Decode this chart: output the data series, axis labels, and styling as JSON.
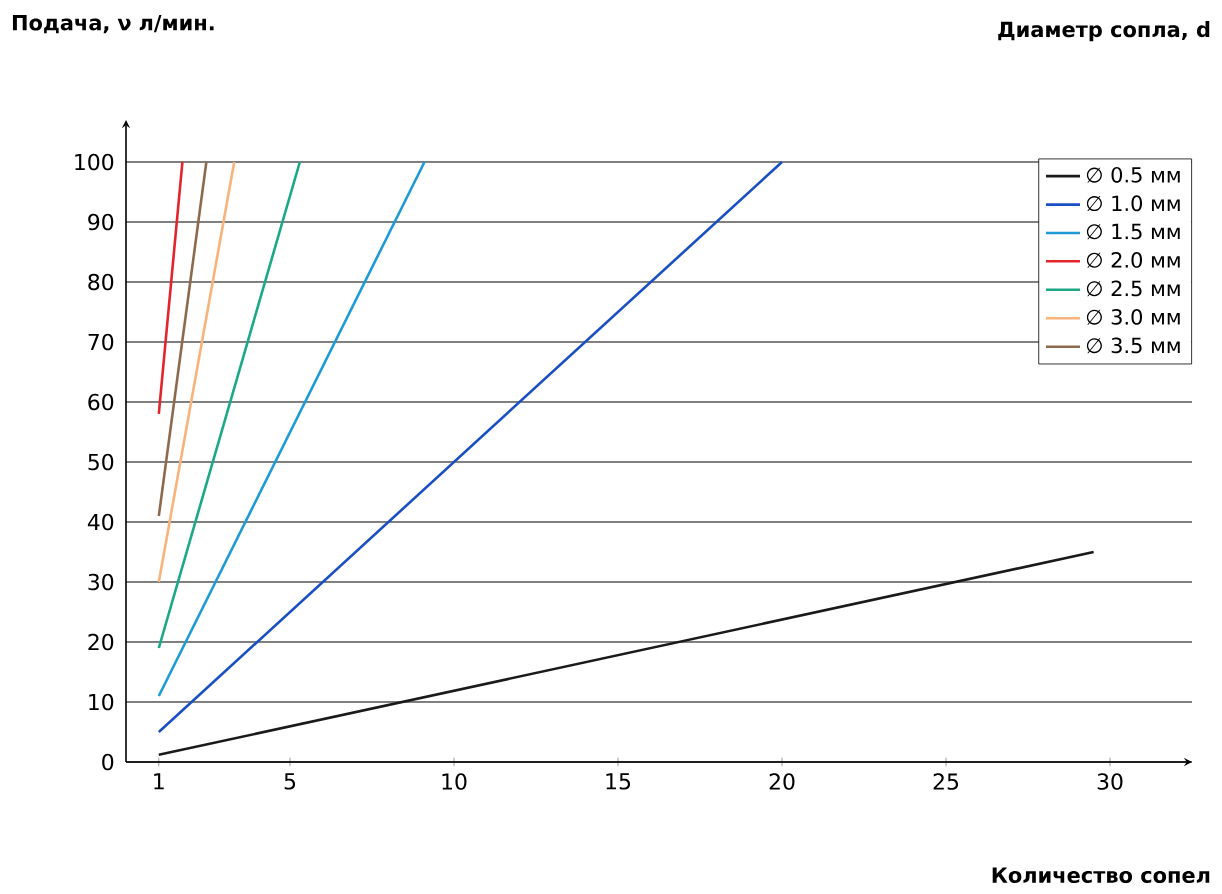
{
  "chart_data": {
    "type": "line",
    "ylabel": "Подача, ν л/мин.",
    "xlabel": "Количество сопел",
    "legend_title": "Диаметр сопла, d",
    "xlim": [
      0,
      32.5
    ],
    "ylim": [
      0,
      107
    ],
    "xticks": [
      1,
      5,
      10,
      15,
      20,
      25,
      30
    ],
    "yticks": [
      0,
      10,
      20,
      30,
      40,
      50,
      60,
      70,
      80,
      90,
      100
    ],
    "grid": "y",
    "legend": "top right",
    "marker": "none",
    "line_style": "solid",
    "series": [
      {
        "name": "∅ 0.5 мм",
        "color": "#1a1a1a",
        "x": [
          1,
          29.5
        ],
        "values": [
          1.2,
          35
        ]
      },
      {
        "name": "∅ 1.0 мм",
        "color": "#1a4fc4",
        "x": [
          1,
          20
        ],
        "values": [
          5,
          100
        ]
      },
      {
        "name": "∅ 1.5 мм",
        "color": "#1e9ad6",
        "x": [
          1,
          9.1
        ],
        "values": [
          11,
          100
        ]
      },
      {
        "name": "∅ 2.0 мм",
        "color": "#e3242b",
        "x": [
          1,
          1.72
        ],
        "values": [
          58,
          100
        ]
      },
      {
        "name": "∅ 2.5 мм",
        "color": "#1aa886",
        "x": [
          1,
          5.3
        ],
        "values": [
          19,
          100
        ]
      },
      {
        "name": "∅ 3.0 мм",
        "color": "#f9b27a",
        "x": [
          1,
          3.3
        ],
        "values": [
          30,
          100
        ]
      },
      {
        "name": "∅ 3.5 мм",
        "color": "#8b6a4e",
        "x": [
          1,
          2.45
        ],
        "values": [
          41,
          100
        ]
      }
    ]
  }
}
